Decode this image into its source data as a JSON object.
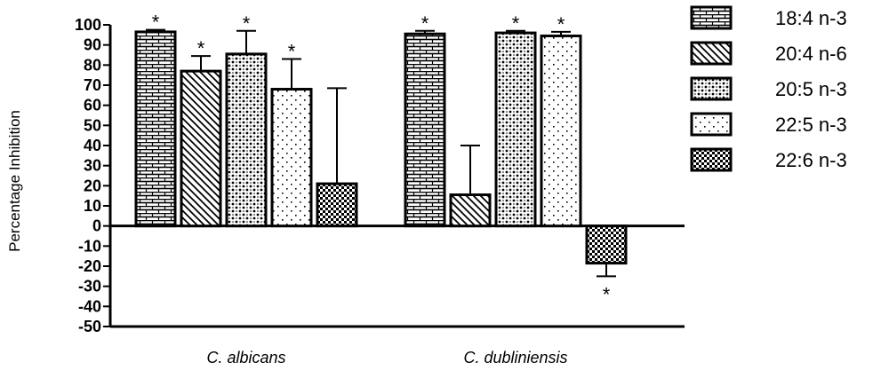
{
  "chart_data": {
    "type": "bar",
    "ylabel": "Percentage Inhibition",
    "ylim": [
      -50,
      100
    ],
    "yticks": [
      100,
      90,
      80,
      70,
      60,
      50,
      40,
      30,
      20,
      10,
      0,
      -10,
      -20,
      -30,
      -40,
      -50
    ],
    "categories": [
      "C. albicans",
      "C. dubliniensis"
    ],
    "series": [
      {
        "name": "18:4 n-3",
        "pattern": "brick",
        "values": [
          96.5,
          95.5
        ],
        "errors": [
          1,
          1.5
        ],
        "significant": [
          true,
          true
        ]
      },
      {
        "name": "20:4 n-6",
        "pattern": "diagonal",
        "values": [
          77,
          15.5
        ],
        "errors": [
          7.5,
          24.5
        ],
        "significant": [
          true,
          false
        ]
      },
      {
        "name": "20:5 n-3",
        "pattern": "dots-cross",
        "values": [
          85.5,
          96
        ],
        "errors": [
          11.5,
          1
        ],
        "significant": [
          true,
          true
        ]
      },
      {
        "name": "22:5 n-3",
        "pattern": "dots-sparse",
        "values": [
          68,
          94.5
        ],
        "errors": [
          15,
          2
        ],
        "significant": [
          true,
          true
        ]
      },
      {
        "name": "22:6 n-3",
        "pattern": "checker",
        "values": [
          21,
          -18.5
        ],
        "errors": [
          47.5,
          6.5
        ],
        "significant": [
          false,
          true
        ]
      }
    ],
    "significance_marker": "*",
    "legend_position": "right",
    "grid": false
  }
}
